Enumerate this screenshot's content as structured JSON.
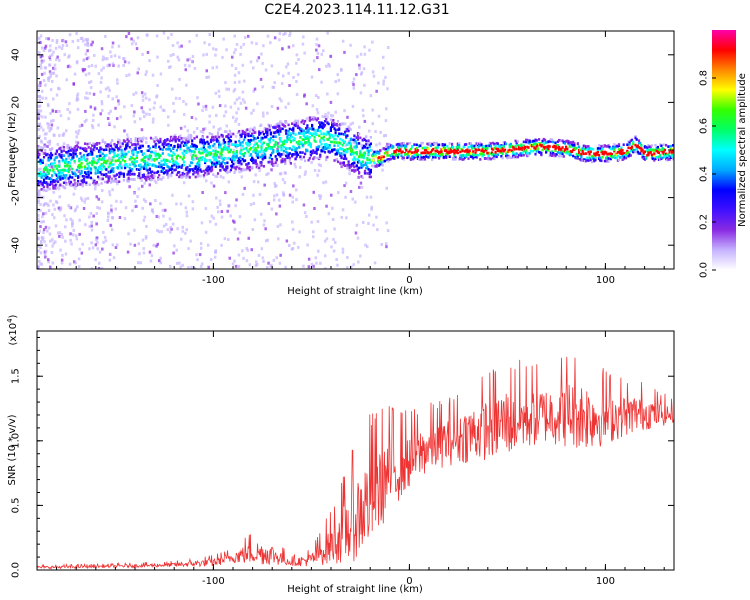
{
  "title": "C2E4.2023.114.11.12.G31",
  "chart_data": [
    {
      "type": "heatmap",
      "title": "C2E4.2023.114.11.12.G31",
      "xlabel": "Height of straight line (km)",
      "ylabel": "Frequency (Hz)",
      "xlim": [
        -190,
        135
      ],
      "ylim": [
        -50,
        50
      ],
      "x_ticks": [
        "-100",
        "0",
        "100"
      ],
      "y_ticks": [
        "40",
        "20",
        "0",
        "-20",
        "-40"
      ],
      "colorbar": {
        "label": "Normalized spectral amplitude",
        "range": [
          0,
          1
        ],
        "ticks": [
          "0.0",
          "0.2",
          "0.4",
          "0.6",
          "0.8"
        ],
        "colors": [
          "#ffffff",
          "#c6b3ff",
          "#8a2be2",
          "#3f10ff",
          "#0000ff",
          "#00aaff",
          "#00ffff",
          "#00ff66",
          "#33ff00",
          "#ffff00",
          "#ff8800",
          "#ff0000",
          "#ff00aa"
        ]
      },
      "ridge": {
        "x": [
          -190,
          -170,
          -150,
          -130,
          -110,
          -90,
          -75,
          -60,
          -45,
          -35,
          -25,
          -20,
          -15,
          -10,
          -5,
          0,
          20,
          40,
          55,
          65,
          80,
          90,
          100,
          110,
          115,
          120,
          135
        ],
        "freq": [
          -8,
          -6,
          -4,
          -3,
          -2,
          0,
          2,
          4,
          6,
          3,
          -2,
          -3,
          -3,
          0,
          0,
          0,
          0,
          0,
          1,
          2,
          1,
          -1,
          -1,
          0,
          3,
          -1,
          0
        ]
      },
      "grid": false
    },
    {
      "type": "line",
      "xlabel": "Height of straight line (km)",
      "ylabel": "SNR (10 * v/v)",
      "y_multiplier": "(x10^4)",
      "xlim": [
        -190,
        135
      ],
      "ylim": [
        0,
        1.85
      ],
      "x_ticks": [
        "-100",
        "0",
        "100"
      ],
      "y_ticks": [
        "0.0",
        "0.5",
        "1.0",
        "1.5"
      ],
      "color": "#ee3333",
      "envelope": {
        "x": [
          -190,
          -150,
          -120,
          -100,
          -90,
          -80,
          -70,
          -60,
          -50,
          -40,
          -30,
          -20,
          -10,
          0,
          10,
          20,
          30,
          40,
          50,
          60,
          70,
          80,
          90,
          100,
          110,
          120,
          135
        ],
        "mean": [
          0.02,
          0.03,
          0.04,
          0.06,
          0.1,
          0.14,
          0.12,
          0.06,
          0.08,
          0.2,
          0.35,
          0.55,
          0.75,
          0.85,
          0.95,
          1.0,
          1.05,
          1.1,
          1.15,
          1.18,
          1.2,
          1.22,
          1.2,
          1.18,
          1.2,
          1.22,
          1.2
        ],
        "amp": [
          0.02,
          0.02,
          0.03,
          0.06,
          0.08,
          0.18,
          0.15,
          0.05,
          0.1,
          0.28,
          0.55,
          0.7,
          0.55,
          0.4,
          0.35,
          0.35,
          0.4,
          0.45,
          0.5,
          0.45,
          0.4,
          0.5,
          0.5,
          0.4,
          0.3,
          0.25,
          0.12
        ]
      },
      "grid": false
    }
  ]
}
